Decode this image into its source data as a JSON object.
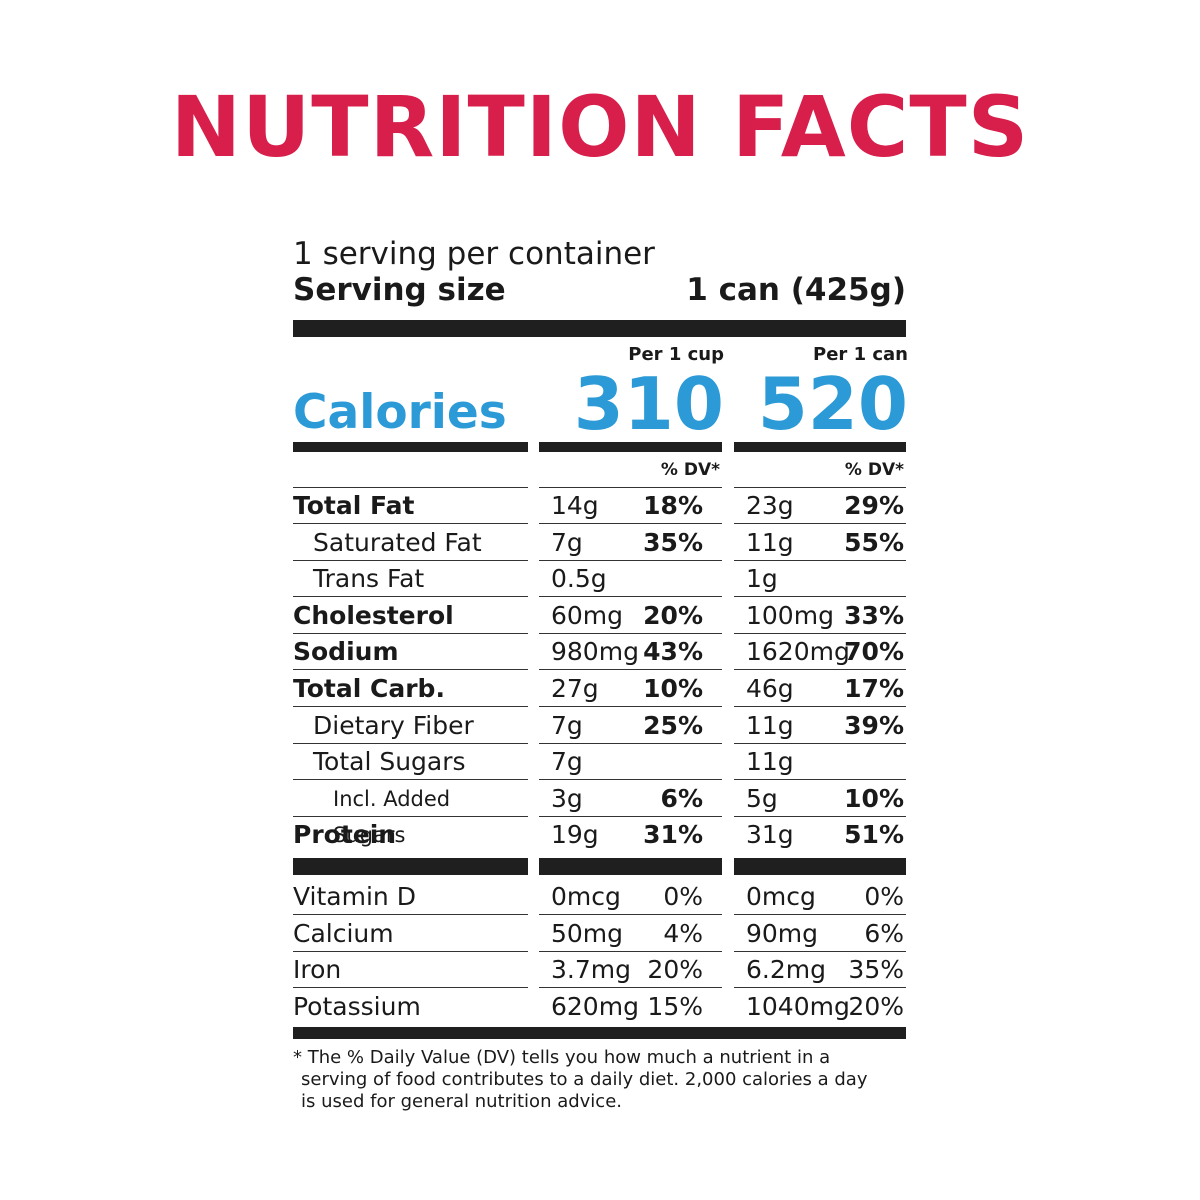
{
  "title": "NUTRITION FACTS",
  "servings": "1 serving per container",
  "serving_size": {
    "label": "Serving size",
    "value": "1 can (425g)"
  },
  "calories": {
    "label": "Calories",
    "columns": [
      {
        "header": "Per 1 cup",
        "value": 310
      },
      {
        "header": "Per 1 can",
        "value": 520
      }
    ]
  },
  "dv_header": "% DV*",
  "nutrients": [
    {
      "name": "Total Fat",
      "level": 0,
      "bold": true,
      "cells": [
        [
          "14g",
          "18%"
        ],
        [
          "23g",
          "29%"
        ]
      ]
    },
    {
      "name": "Saturated Fat",
      "level": 1,
      "bold": false,
      "cells": [
        [
          "7g",
          "35%"
        ],
        [
          "11g",
          "55%"
        ]
      ]
    },
    {
      "name": "Trans Fat",
      "level": 1,
      "bold": false,
      "cells": [
        [
          "0.5g"
        ],
        [
          "1g"
        ]
      ]
    },
    {
      "name": "Cholesterol",
      "level": 0,
      "bold": true,
      "cells": [
        [
          "60mg",
          "20%"
        ],
        [
          "100mg",
          "33%"
        ]
      ]
    },
    {
      "name": "Sodium",
      "level": 0,
      "bold": true,
      "cells": [
        [
          "980mg",
          "43%"
        ],
        [
          "1620mg",
          "70%"
        ]
      ]
    },
    {
      "name": "Total Carb.",
      "level": 0,
      "bold": true,
      "cells": [
        [
          "27g",
          "10%"
        ],
        [
          "46g",
          "17%"
        ]
      ]
    },
    {
      "name": "Dietary Fiber",
      "level": 1,
      "bold": false,
      "cells": [
        [
          "7g",
          "25%"
        ],
        [
          "11g",
          "39%"
        ]
      ]
    },
    {
      "name": "Total Sugars",
      "level": 1,
      "bold": false,
      "cells": [
        [
          "7g"
        ],
        [
          "11g"
        ]
      ]
    },
    {
      "name": "Incl. Added Sugars",
      "level": 2,
      "bold": false,
      "cells": [
        [
          "3g",
          "6%"
        ],
        [
          "5g",
          "10%"
        ]
      ]
    },
    {
      "name": "Protein",
      "level": 0,
      "bold": true,
      "cells": [
        [
          "19g",
          "31%"
        ],
        [
          "31g",
          "51%"
        ]
      ]
    }
  ],
  "vitamins": [
    {
      "name": "Vitamin D",
      "cells": [
        [
          "0mcg",
          "0%"
        ],
        [
          "0mcg",
          "0%"
        ]
      ]
    },
    {
      "name": "Calcium",
      "cells": [
        [
          "50mg",
          "4%"
        ],
        [
          "90mg",
          "6%"
        ]
      ]
    },
    {
      "name": "Iron",
      "cells": [
        [
          "3.7mg",
          "20%"
        ],
        [
          "6.2mg",
          "35%"
        ]
      ]
    },
    {
      "name": "Potassium",
      "cells": [
        [
          "620mg",
          "15%"
        ],
        [
          "1040mg",
          "20%"
        ]
      ]
    }
  ],
  "footnote": [
    "* The % Daily Value (DV) tells you how much a nutrient in a",
    "serving of food contributes to a daily diet. 2,000 calories a day",
    "is used for general nutrition advice."
  ]
}
